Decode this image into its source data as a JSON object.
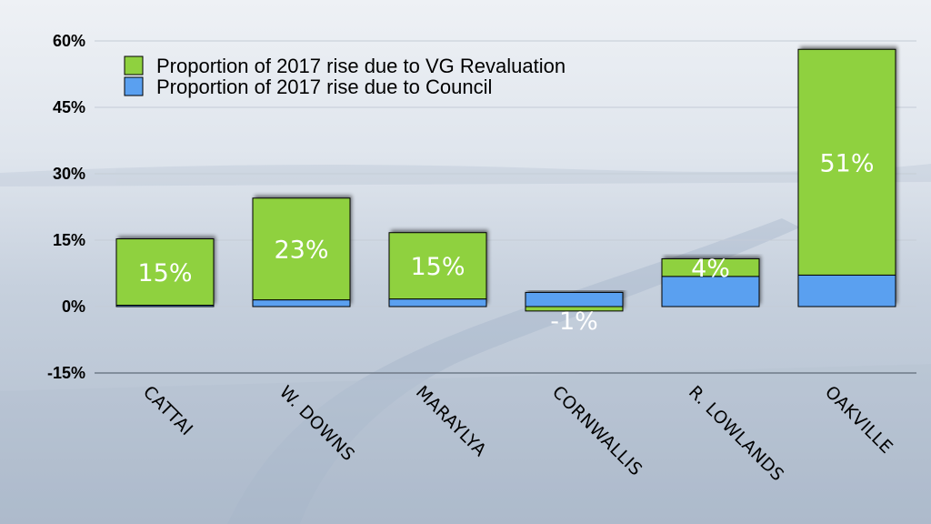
{
  "chart_data": {
    "type": "bar",
    "stacked": true,
    "categories": [
      "CATTAI",
      "W. DOWNS",
      "MARAYLYA",
      "CORNWALLIS",
      "R. LOWLANDS",
      "OAKVILLE"
    ],
    "series": [
      {
        "name": "Proportion of 2017 rise due to VG Revaluation",
        "color": "#8fd13f",
        "values": [
          15,
          23,
          15,
          -1,
          4,
          51
        ],
        "labels": [
          "15%",
          "23%",
          "15%",
          "-1%",
          "4%",
          "51%"
        ]
      },
      {
        "name": "Proportion of 2017 rise due to Council",
        "color": "#5aa0f0",
        "values": [
          0.3,
          1.5,
          1.7,
          3.2,
          6.8,
          7.1
        ]
      }
    ],
    "ylim": [
      -15,
      60
    ],
    "yticks": [
      60,
      45,
      30,
      15,
      0,
      -15
    ],
    "ytick_labels": [
      "60%",
      "45%",
      "30%",
      "15%",
      "0%",
      "-15%"
    ],
    "grid": true,
    "legend": "top-left",
    "title": "",
    "xlabel": "",
    "ylabel": "",
    "background_colors": {
      "sky": "#e6ebf1",
      "ground": "#b9c5d6"
    }
  }
}
